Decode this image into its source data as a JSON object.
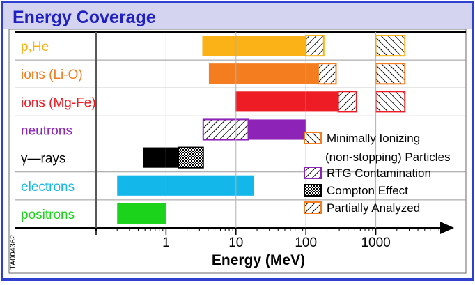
{
  "title": "Energy Coverage",
  "figure_id": "TA004362",
  "chart_data": {
    "type": "bar",
    "subtype": "horizontal-range",
    "xlabel": "Energy (MeV)",
    "xscale": "log",
    "xlim": [
      0.1,
      10000
    ],
    "x_ticks": [
      {
        "value": 1,
        "label": "1"
      },
      {
        "value": 10,
        "label": "10"
      },
      {
        "value": 100,
        "label": "100"
      },
      {
        "value": 1000,
        "label": "1000"
      }
    ],
    "legend_position": "bottom-right",
    "categories": [
      {
        "label": "p,He",
        "color": "#fbb217"
      },
      {
        "label": "ions (Li-O)",
        "color": "#f47d20"
      },
      {
        "label": "ions (Mg-Fe)",
        "color": "#ee1c25"
      },
      {
        "label": "neutrons",
        "color": "#8e23b8"
      },
      {
        "label": "γ—rays",
        "color": "#000000"
      },
      {
        "label": "electrons",
        "color": "#13b7ea"
      },
      {
        "label": "positrons",
        "color": "#1bd31b"
      }
    ],
    "segments": [
      {
        "category": 0,
        "x0": 3.3,
        "x1": 100,
        "style": "solid",
        "color": "#fbb217"
      },
      {
        "category": 0,
        "x0": 100,
        "x1": 180,
        "style": "partially-analyzed",
        "color": "#fbb217"
      },
      {
        "category": 0,
        "x0": 1000,
        "x1": 2600,
        "style": "minimally-ionizing",
        "color": "#fbb217"
      },
      {
        "category": 1,
        "x0": 4.1,
        "x1": 150,
        "style": "solid",
        "color": "#f47d20"
      },
      {
        "category": 1,
        "x0": 150,
        "x1": 270,
        "style": "partially-analyzed",
        "color": "#f47d20"
      },
      {
        "category": 1,
        "x0": 1000,
        "x1": 2600,
        "style": "minimally-ionizing",
        "color": "#f47d20"
      },
      {
        "category": 2,
        "x0": 9.8,
        "x1": 290,
        "style": "solid",
        "color": "#ee1c25"
      },
      {
        "category": 2,
        "x0": 290,
        "x1": 530,
        "style": "partially-analyzed",
        "color": "#ee1c25"
      },
      {
        "category": 2,
        "x0": 1000,
        "x1": 2600,
        "style": "minimally-ionizing",
        "color": "#ee1c25"
      },
      {
        "category": 3,
        "x0": 3.4,
        "x1": 15,
        "style": "rtg-contamination",
        "color": "#8e23b8"
      },
      {
        "category": 3,
        "x0": 15,
        "x1": 100,
        "style": "solid",
        "color": "#8e23b8"
      },
      {
        "category": 4,
        "x0": 0.47,
        "x1": 1.5,
        "style": "solid",
        "color": "#000000"
      },
      {
        "category": 4,
        "x0": 1.5,
        "x1": 3.4,
        "style": "compton-effect",
        "color": "#000000"
      },
      {
        "category": 5,
        "x0": 0.2,
        "x1": 18,
        "style": "solid",
        "color": "#13b7ea"
      },
      {
        "category": 6,
        "x0": 0.2,
        "x1": 1.0,
        "style": "solid",
        "color": "#1bd31b"
      }
    ],
    "legend": [
      {
        "label": "Minimally Ionizing",
        "label2": "(non-stopping) Particles",
        "style": "minimally-ionizing",
        "color": "#f47d20"
      },
      {
        "label": "RTG Contamination",
        "style": "rtg-contamination",
        "color": "#8e23b8"
      },
      {
        "label": "Compton Effect",
        "style": "compton-effect",
        "color": "#000000"
      },
      {
        "label": "Partially Analyzed",
        "style": "partially-analyzed",
        "color": "#f47d20"
      }
    ]
  }
}
